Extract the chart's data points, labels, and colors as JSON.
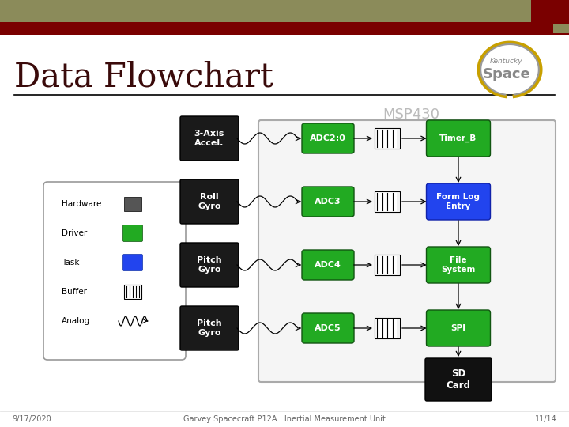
{
  "title": "Data Flowchart",
  "subtitle": "MSP430",
  "footer_left": "9/17/2020",
  "footer_center": "Garvey Spacecraft P12A:  Inertial Measurement Unit",
  "footer_right": "11/14",
  "bg_color": "#ffffff",
  "header_bar1_color": "#8b8b5a",
  "header_bar2_color": "#7a0000",
  "header_accent_color": "#7a0000",
  "header_accent2_color": "#8b8b5a",
  "title_color": "#3a0a0a",
  "subtitle_color": "#bbbbbb",
  "green_color": "#22aa22",
  "blue_color": "#2244ee",
  "rows": [
    0.635,
    0.515,
    0.395,
    0.275
  ],
  "left_labels": [
    "3-Axis\nAccel.",
    "Roll\nGyro",
    "Pitch\nGyro",
    "Pitch\nGyro"
  ],
  "adc_labels": [
    "ADC2:0",
    "ADC3",
    "ADC4",
    "ADC5"
  ],
  "right_labels": [
    "Timer_B",
    "Form Log\nEntry",
    "File\nSystem",
    "SPI"
  ],
  "right_colors": [
    "#22aa22",
    "#2244ee",
    "#22aa22",
    "#22aa22"
  ],
  "sd_label": "SD\nCard"
}
